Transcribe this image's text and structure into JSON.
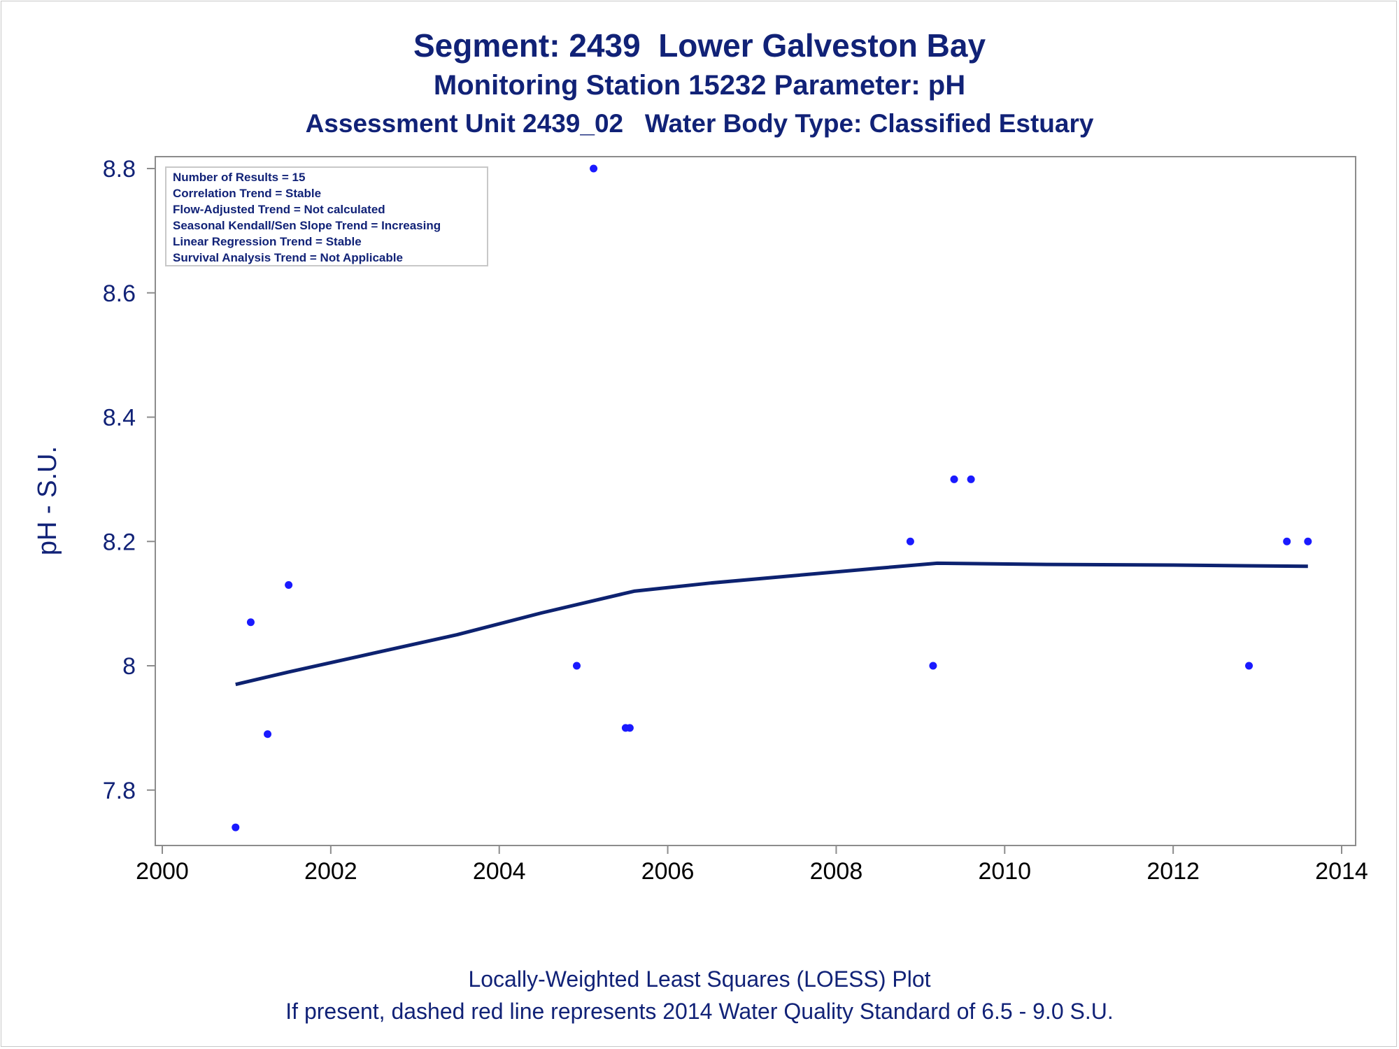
{
  "titles": {
    "line1": "Segment: 2439  Lower Galveston Bay",
    "line2": "Monitoring Station 15232 Parameter: pH",
    "line3": "Assessment Unit 2439_02   Water Body Type: Classified Estuary"
  },
  "footnotes": {
    "line1": "Locally-Weighted Least Squares (LOESS) Plot",
    "line2": "If present, dashed red line represents 2014 Water Quality Standard of 6.5 - 9.0 S.U."
  },
  "legend_box": [
    "Number of Results = 15",
    "Correlation Trend = Stable",
    "Flow-Adjusted Trend = Not calculated",
    "Seasonal Kendall/Sen Slope Trend = Increasing",
    "Linear Regression Trend = Stable",
    "Survival Analysis Trend = Not Applicable"
  ],
  "colors": {
    "text": "#112277",
    "points": "#1a1aff",
    "loess_line": "#0d2270",
    "axis": "#8c8c8c"
  },
  "chart_data": {
    "type": "scatter",
    "xlabel": "",
    "ylabel": "pH - S.U.",
    "xlim": [
      2000,
      2014
    ],
    "ylim": [
      7.72,
      8.82
    ],
    "xticks": [
      2000,
      2002,
      2004,
      2006,
      2008,
      2010,
      2012,
      2014
    ],
    "xtick_labels": [
      "2000",
      "2002",
      "2004",
      "2006",
      "2008",
      "2010",
      "2012",
      "2014"
    ],
    "yticks": [
      7.8,
      8.0,
      8.2,
      8.4,
      8.6,
      8.8
    ],
    "ytick_labels": [
      "7.8",
      "8",
      "8.2",
      "8.4",
      "8.6",
      "8.8"
    ],
    "grid": false,
    "points": [
      {
        "x": 2000.87,
        "y": 7.74
      },
      {
        "x": 2001.05,
        "y": 8.07
      },
      {
        "x": 2001.25,
        "y": 7.89
      },
      {
        "x": 2001.5,
        "y": 8.13
      },
      {
        "x": 2004.92,
        "y": 8.0
      },
      {
        "x": 2005.12,
        "y": 8.8
      },
      {
        "x": 2005.5,
        "y": 7.9
      },
      {
        "x": 2005.55,
        "y": 7.9
      },
      {
        "x": 2008.88,
        "y": 8.2
      },
      {
        "x": 2009.15,
        "y": 8.0
      },
      {
        "x": 2009.4,
        "y": 8.3
      },
      {
        "x": 2009.6,
        "y": 8.3
      },
      {
        "x": 2012.9,
        "y": 8.0
      },
      {
        "x": 2013.35,
        "y": 8.2
      },
      {
        "x": 2013.6,
        "y": 8.2
      }
    ],
    "loess": [
      {
        "x": 2000.87,
        "y": 7.97
      },
      {
        "x": 2001.5,
        "y": 7.99
      },
      {
        "x": 2002.5,
        "y": 8.02
      },
      {
        "x": 2003.5,
        "y": 8.05
      },
      {
        "x": 2004.5,
        "y": 8.085
      },
      {
        "x": 2005.6,
        "y": 8.12
      },
      {
        "x": 2006.5,
        "y": 8.133
      },
      {
        "x": 2007.5,
        "y": 8.145
      },
      {
        "x": 2008.5,
        "y": 8.157
      },
      {
        "x": 2009.2,
        "y": 8.165
      },
      {
        "x": 2010.5,
        "y": 8.163
      },
      {
        "x": 2012.0,
        "y": 8.162
      },
      {
        "x": 2013.6,
        "y": 8.16
      }
    ]
  }
}
